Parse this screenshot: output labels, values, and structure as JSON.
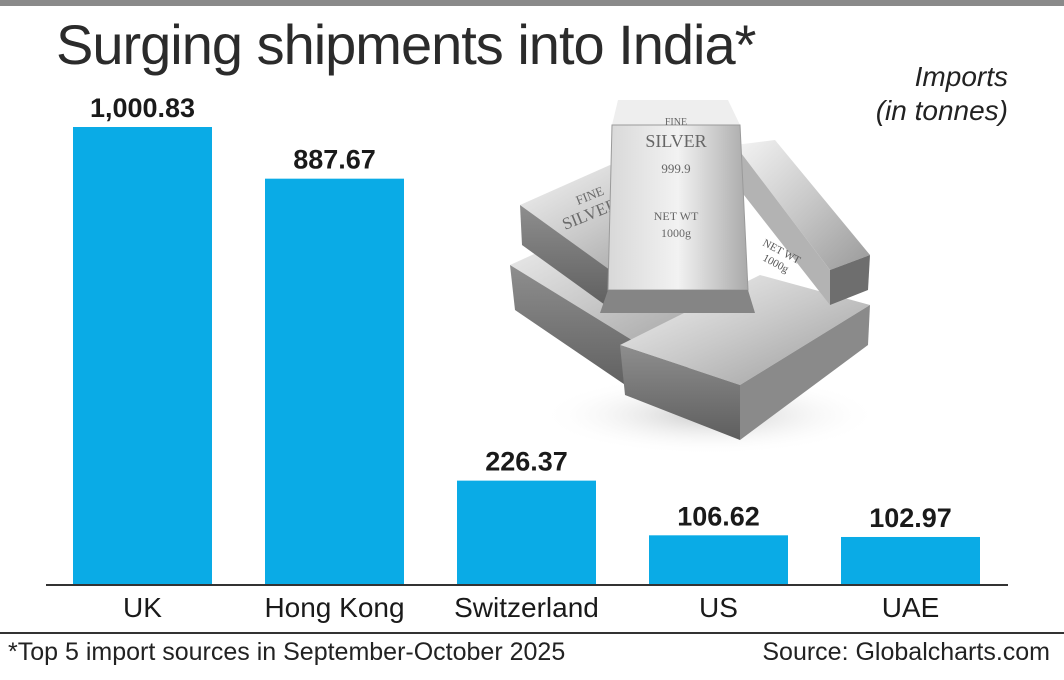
{
  "chart_data": {
    "type": "bar",
    "title": "Surging shipments into India*",
    "ylabel": "Imports (in tonnes)",
    "xlabel": "",
    "categories": [
      "UK",
      "Hong Kong",
      "Switzerland",
      "US",
      "UAE"
    ],
    "values": [
      1000.83,
      887.67,
      226.37,
      106.62,
      102.97
    ],
    "value_labels": [
      "1,000.83",
      "887.67",
      "226.37",
      "106.62",
      "102.97"
    ],
    "ylim": [
      0,
      1000.83
    ],
    "grid": false,
    "bar_color": "#0aabe6"
  },
  "header": {
    "title": "Surging shipments into India*",
    "unit_line1": "Imports",
    "unit_line2": "(in tonnes)"
  },
  "footer": {
    "footnote": "*Top 5 import sources in September-October 2025",
    "source": "Source: Globalcharts.com"
  },
  "illustration": {
    "icon": "silver-bars-icon",
    "front_bar_lines": [
      "FINE",
      "SILVER",
      "999.9",
      "NET WT",
      "1000g"
    ],
    "left_bar_lines": [
      "FINE",
      "SILVER"
    ],
    "right_bar_lines": [
      "NET WT",
      "1000g"
    ]
  }
}
